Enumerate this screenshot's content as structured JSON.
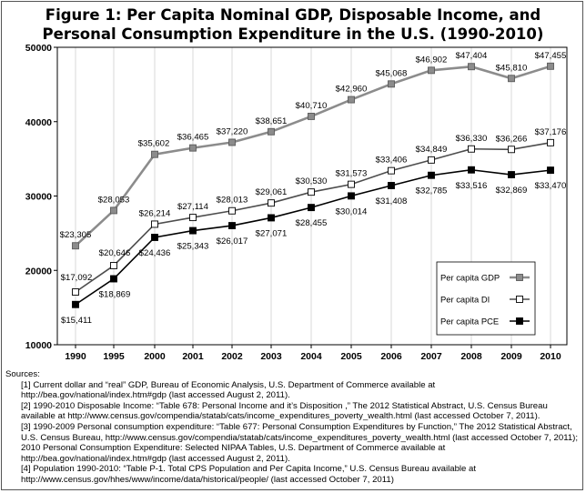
{
  "title": {
    "line1": "Figure 1: Per Capita Nominal GDP, Disposable Income, and",
    "line2": "Personal Consumption Expenditure in the U.S. (1990-2010)"
  },
  "chart_data": {
    "type": "line",
    "categories": [
      "1990",
      "1995",
      "2000",
      "2001",
      "2002",
      "2003",
      "2004",
      "2005",
      "2006",
      "2007",
      "2008",
      "2009",
      "2010"
    ],
    "ylim": [
      10000,
      50000
    ],
    "yticks": [
      "10000",
      "20000",
      "30000",
      "40000",
      "50000"
    ],
    "grid": "vertical",
    "legend_position": "bottom-right",
    "series": [
      {
        "name": "Per capita GDP",
        "color": "#8c8c8c",
        "marker": "gray-square",
        "values": [
          23305,
          28053,
          35602,
          36465,
          37220,
          38651,
          40710,
          42960,
          45068,
          46902,
          47404,
          45810,
          47455
        ],
        "labels": [
          "$23,305",
          "$28,053",
          "$35,602",
          "$36,465",
          "$37,220",
          "$38,651",
          "$40,710",
          "$42,960",
          "$45,068",
          "$46,902",
          "$47,404",
          "$45,810",
          "$47,455"
        ]
      },
      {
        "name": "Per capita DI",
        "color": "#4d4d4d",
        "marker": "white-square",
        "values": [
          17092,
          20646,
          26214,
          27114,
          28013,
          29061,
          30530,
          31573,
          33406,
          34849,
          36330,
          36266,
          37176
        ],
        "labels": [
          "$17,092",
          "$20,646",
          "$26,214",
          "$27,114",
          "$28,013",
          "$29,061",
          "$30,530",
          "$31,573",
          "$33,406",
          "$34,849",
          "$36,330",
          "$36,266",
          "$37,176"
        ]
      },
      {
        "name": "Per capita PCE",
        "color": "#000000",
        "marker": "black-square",
        "values": [
          15411,
          18869,
          24436,
          25343,
          26017,
          27071,
          28455,
          30014,
          31408,
          32785,
          33516,
          32869,
          33470
        ],
        "labels": [
          "$15,411",
          "$18,869",
          "$24,436",
          "$25,343",
          "$26,017",
          "$27,071",
          "$28,455",
          "$30,014",
          "$31,408",
          "$32,785",
          "$33,516",
          "$32,869",
          "$33,470"
        ]
      }
    ]
  },
  "sources": {
    "heading": "Sources:",
    "notes": [
      "[1] Current dollar and “real” GDP, Bureau of Economic Analysis, U.S. Department of Commerce available at http://bea.gov/national/index.htm#gdp (last accessed August 2, 2011).",
      "[2] 1990-2010 Disposable Income: “Table 678: Personal Income and it’s Disposition ,” The 2012 Statistical Abstract, U.S. Census Bureau available at http://www.census.gov/compendia/statab/cats/income_expenditures_poverty_wealth.html (last accessed October 7, 2011).",
      "[3] 1990-2009 Personal consumption expenditure: “Table 677: Personal Consumption Expenditures by Function,” The 2012 Statistical Abstract, U.S. Census Bureau, http://www.census.gov/compendia/statab/cats/income_expenditures_poverty_wealth.html (last accessed October 7, 2011); 2010 Personal Consumption Expenditure: Selected NIPAA Tables, U.S. Department of Commerce available at http://bea.gov/national/index.htm#gdp (last accessed August 2, 2011).",
      "[4] Population 1990-2010: “Table P-1. Total CPS Population and Per Capita Income,” U.S. Census Bureau available at http://www.census.gov/hhes/www/income/data/historical/people/ (last accessed October 7, 2011)"
    ]
  }
}
